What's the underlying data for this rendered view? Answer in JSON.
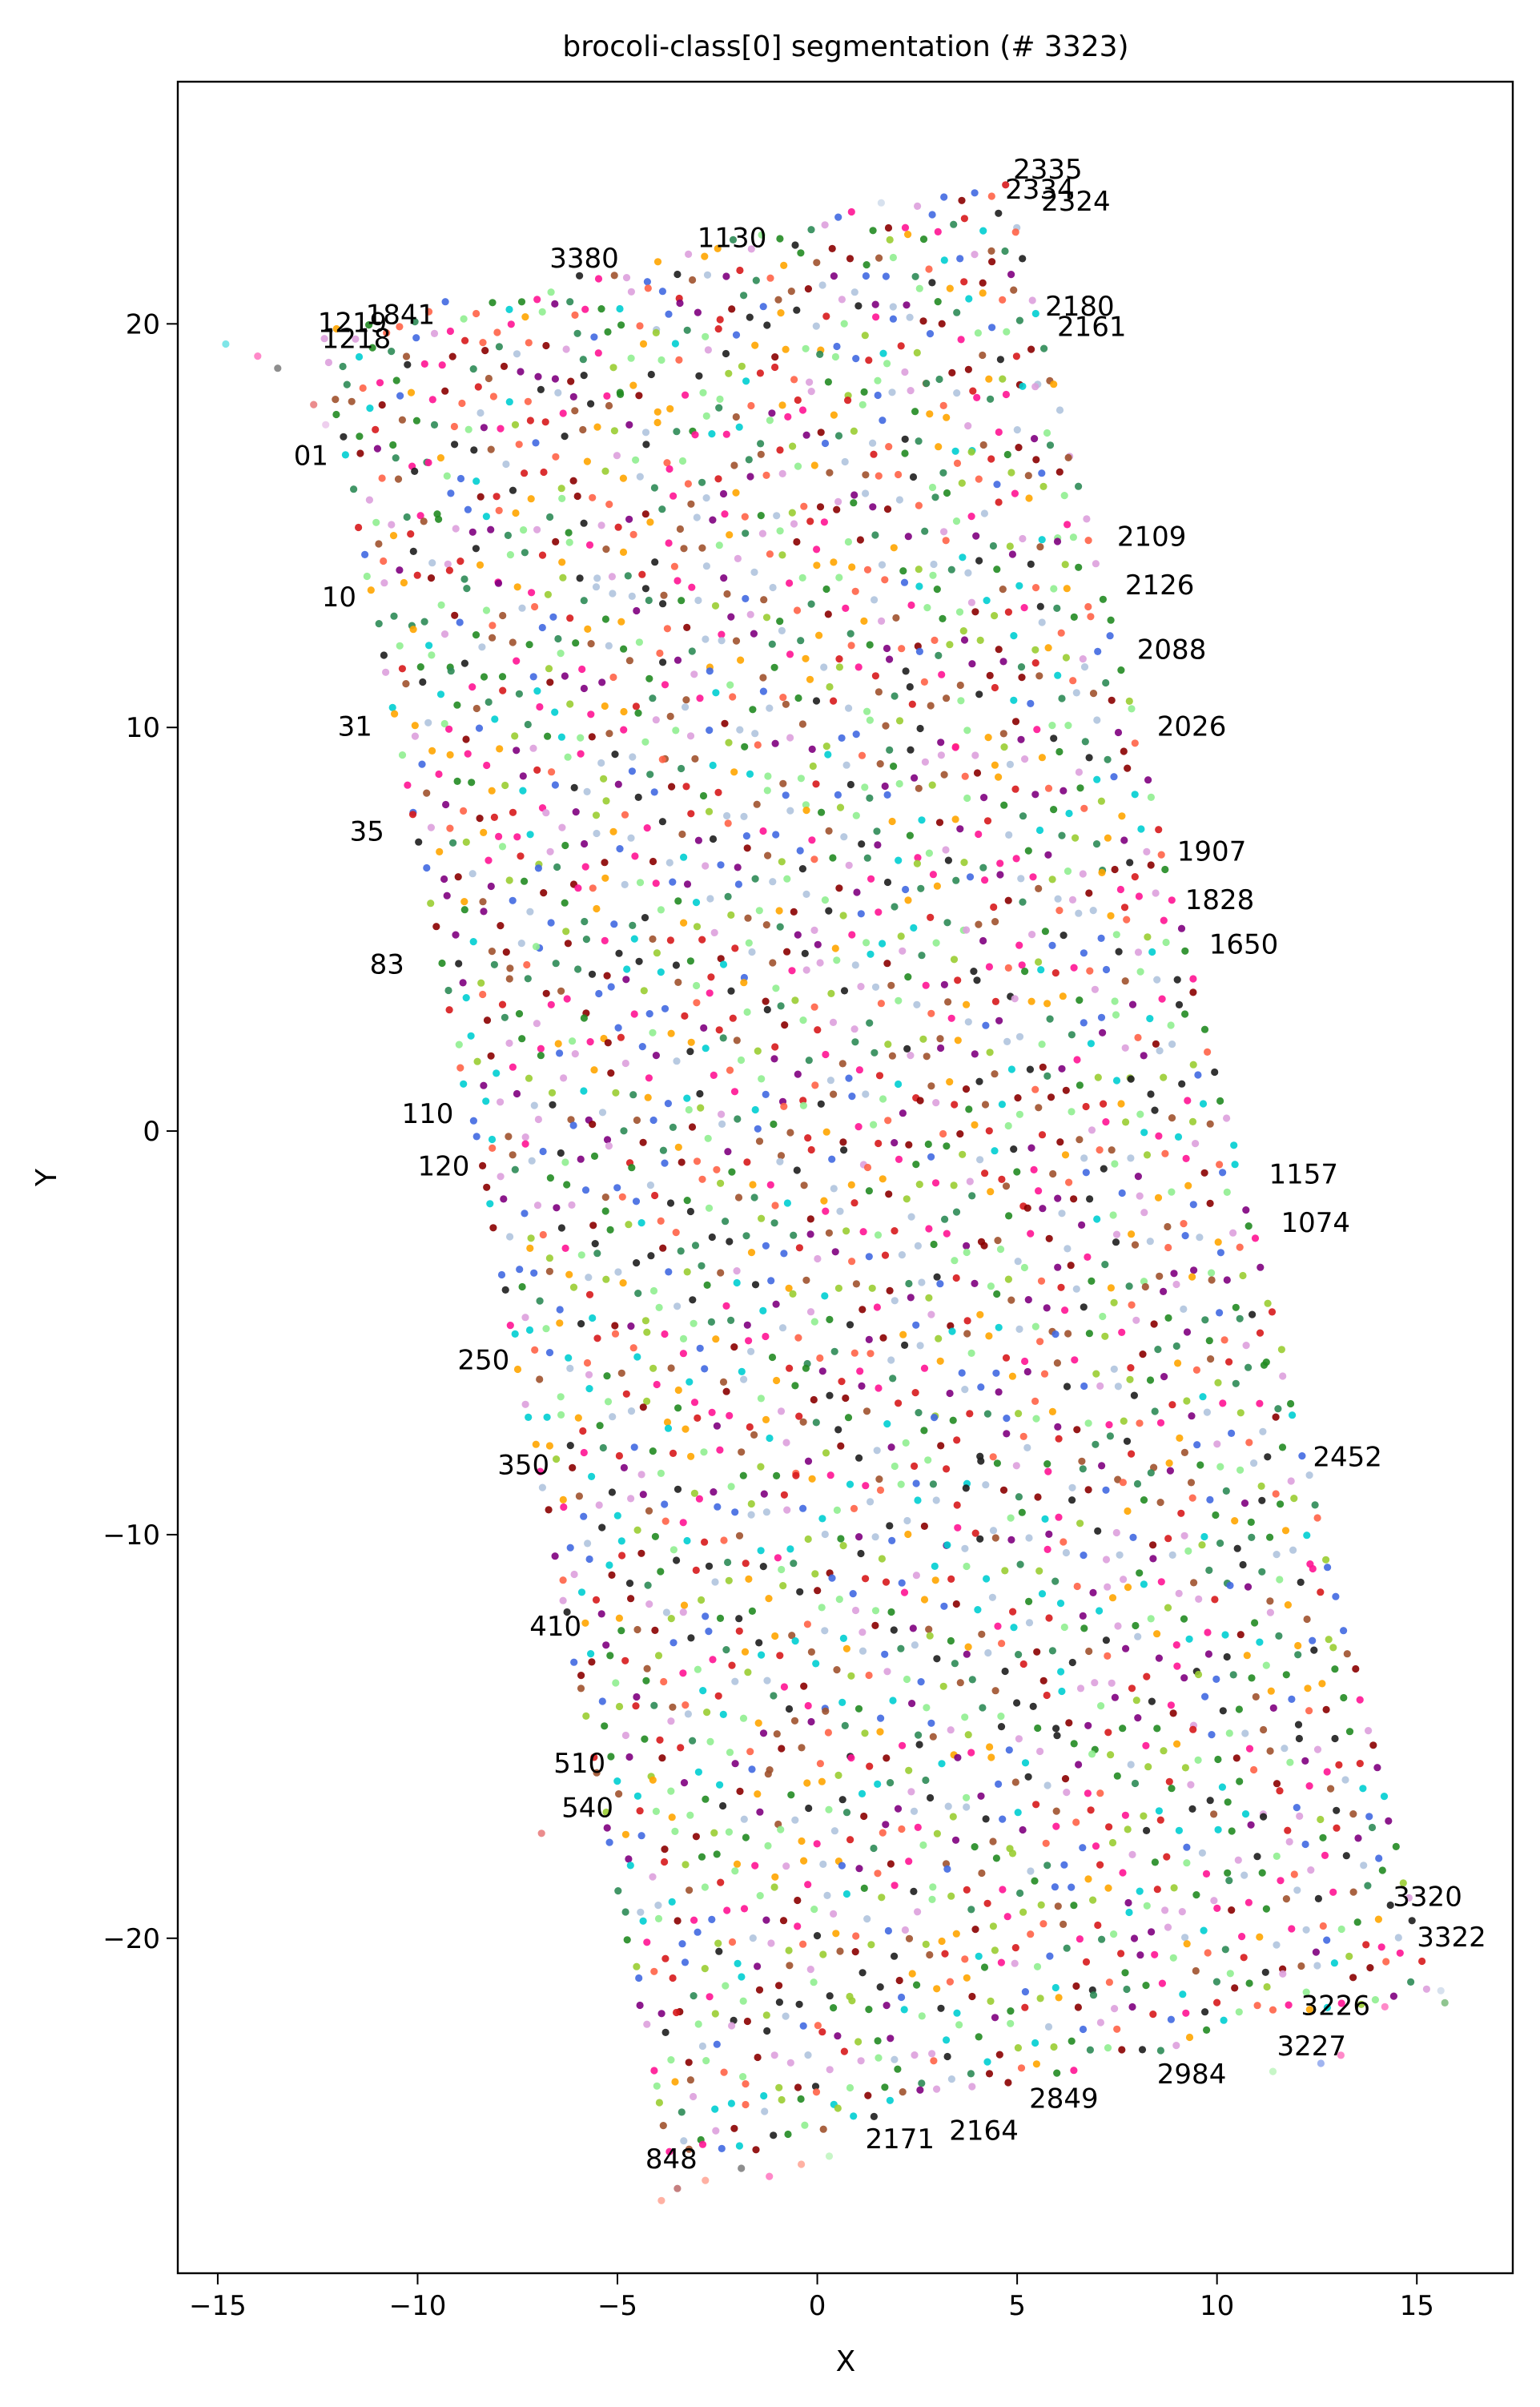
{
  "chart_data": {
    "type": "scatter",
    "title": "brocoli-class[0] segmentation (# 3323)",
    "xlabel": "X",
    "ylabel": "Y",
    "xlim": [
      -16.0,
      17.4
    ],
    "ylim": [
      -28.3,
      26.0
    ],
    "xticks": [
      -15,
      -10,
      -5,
      0,
      5,
      10,
      15
    ],
    "yticks": [
      -20,
      -10,
      0,
      10,
      20
    ],
    "xtick_labels": [
      "−15",
      "−10",
      "−5",
      "0",
      "5",
      "10",
      "15"
    ],
    "ytick_labels": [
      "−20",
      "−10",
      "0",
      "10",
      "20"
    ],
    "grid": false,
    "legend": "none",
    "point_count": 3323,
    "point_palette": [
      "#d7191c",
      "#8b0000",
      "#2e8b57",
      "#9acd32",
      "#ff1493",
      "#4169e1",
      "#ffa500",
      "#800080",
      "#00ced1",
      "#a0522d",
      "#90ee90",
      "#ff6347",
      "#1e1e1e",
      "#b0c4de",
      "#dda0dd",
      "#228b22"
    ],
    "region": {
      "corners": [
        [
          -12.6,
          19.9
        ],
        [
          4.9,
          23.6
        ],
        [
          15.5,
          -21.2
        ],
        [
          -3.8,
          -25.9
        ]
      ],
      "rows": 46,
      "points_per_row": 72
    },
    "outliers": [
      {
        "x": -14.8,
        "y": 19.5
      },
      {
        "x": -14.0,
        "y": 19.2
      },
      {
        "x": -13.5,
        "y": 18.9
      },
      {
        "x": -12.6,
        "y": 18.0
      },
      {
        "x": -12.3,
        "y": 17.5
      },
      {
        "x": -6.9,
        "y": -17.4
      },
      {
        "x": -3.9,
        "y": -26.5
      },
      {
        "x": -3.5,
        "y": -26.2
      },
      {
        "x": -2.8,
        "y": -26.0
      },
      {
        "x": -1.9,
        "y": -25.7
      },
      {
        "x": -1.2,
        "y": -25.9
      },
      {
        "x": -0.4,
        "y": -25.6
      },
      {
        "x": 0.3,
        "y": -25.4
      },
      {
        "x": 1.6,
        "y": 23.0
      },
      {
        "x": 11.4,
        "y": -23.3
      },
      {
        "x": 12.6,
        "y": -23.1
      },
      {
        "x": 13.1,
        "y": -22.9
      },
      {
        "x": 15.7,
        "y": -21.6
      },
      {
        "x": 15.6,
        "y": -21.3
      },
      {
        "x": 14.2,
        "y": -21.7
      }
    ],
    "annotations": [
      {
        "text": "2335",
        "x": 4.9,
        "y": 23.6
      },
      {
        "text": "2334",
        "x": 4.7,
        "y": 23.1
      },
      {
        "text": "2324",
        "x": 5.6,
        "y": 22.8
      },
      {
        "text": "1219",
        "x": -12.5,
        "y": 19.8
      },
      {
        "text": "1218",
        "x": -12.4,
        "y": 19.4
      },
      {
        "text": "2180",
        "x": 5.7,
        "y": 20.2
      },
      {
        "text": "2161",
        "x": 6.0,
        "y": 19.7
      },
      {
        "text": "2109",
        "x": 7.5,
        "y": 14.5
      },
      {
        "text": "2126",
        "x": 7.7,
        "y": 13.3
      },
      {
        "text": "2088",
        "x": 8.0,
        "y": 11.7
      },
      {
        "text": "2026",
        "x": 8.5,
        "y": 9.8
      },
      {
        "text": "1907",
        "x": 9.0,
        "y": 6.7
      },
      {
        "text": "1828",
        "x": 9.2,
        "y": 5.5
      },
      {
        "text": "1650",
        "x": 9.8,
        "y": 4.4
      },
      {
        "text": "1157",
        "x": 11.3,
        "y": -1.3
      },
      {
        "text": "1074",
        "x": 11.6,
        "y": -2.5
      },
      {
        "text": "2452",
        "x": 12.4,
        "y": -8.3
      },
      {
        "text": "3320",
        "x": 14.4,
        "y": -19.2
      },
      {
        "text": "3322",
        "x": 15.0,
        "y": -20.2
      },
      {
        "text": "3227",
        "x": 11.5,
        "y": -22.9
      },
      {
        "text": "3226",
        "x": 12.1,
        "y": -21.9
      },
      {
        "text": "2984",
        "x": 8.5,
        "y": -23.6
      },
      {
        "text": "2849",
        "x": 5.3,
        "y": -24.2
      },
      {
        "text": "2171",
        "x": 1.2,
        "y": -25.2
      },
      {
        "text": "2164",
        "x": 3.3,
        "y": -25.0
      },
      {
        "text": "848",
        "x": -4.3,
        "y": -25.7
      },
      {
        "text": "410",
        "x": -7.2,
        "y": -12.5
      },
      {
        "text": "510",
        "x": -6.6,
        "y": -15.9
      },
      {
        "text": "540",
        "x": -6.4,
        "y": -17.0
      },
      {
        "text": "350",
        "x": -8.0,
        "y": -8.5
      },
      {
        "text": "250",
        "x": -9.0,
        "y": -5.9
      },
      {
        "text": "120",
        "x": -10.0,
        "y": -1.1
      },
      {
        "text": "110",
        "x": -10.4,
        "y": 0.2
      },
      {
        "text": "83",
        "x": -11.2,
        "y": 3.9
      },
      {
        "text": "35",
        "x": -11.7,
        "y": 7.2
      },
      {
        "text": "31",
        "x": -12.0,
        "y": 9.8
      },
      {
        "text": "10",
        "x": -12.4,
        "y": 13.0
      },
      {
        "text": "01",
        "x": -13.1,
        "y": 16.5
      },
      {
        "text": "1841",
        "x": -11.3,
        "y": 20.0
      },
      {
        "text": "3380",
        "x": -6.7,
        "y": 21.4
      },
      {
        "text": "1130",
        "x": -3.0,
        "y": 21.9
      }
    ]
  }
}
